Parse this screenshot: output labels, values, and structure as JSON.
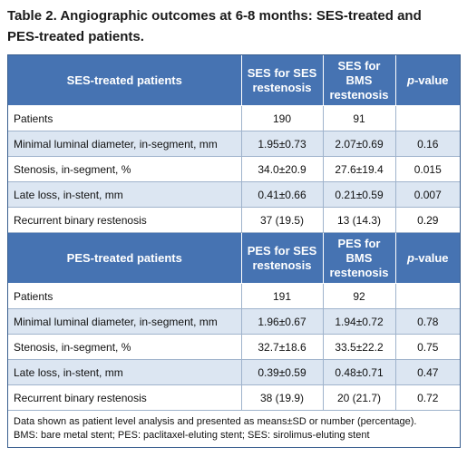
{
  "title_lines": [
    "Table 2. Angiographic outcomes at 6-8 months: SES-treated and",
    "PES-treated patients."
  ],
  "sections": [
    {
      "header": [
        [
          "SES-treated patients"
        ],
        [
          "SES for SES",
          "restenosis"
        ],
        [
          "SES for BMS",
          "restenosis"
        ]
      ],
      "p_header": {
        "italic": "p",
        "text": "-value"
      },
      "rows": [
        [
          "Patients",
          "190",
          "91",
          ""
        ],
        [
          "Minimal luminal diameter, in-segment, mm",
          "1.95±0.73",
          "2.07±0.69",
          "0.16"
        ],
        [
          "Stenosis, in-segment, %",
          "34.0±20.9",
          "27.6±19.4",
          "0.015"
        ],
        [
          "Late loss, in-stent, mm",
          "0.41±0.66",
          "0.21±0.59",
          "0.007"
        ],
        [
          "Recurrent binary restenosis",
          "37 (19.5)",
          "13 (14.3)",
          "0.29"
        ]
      ]
    },
    {
      "header": [
        [
          "PES-treated patients"
        ],
        [
          "PES for SES",
          "restenosis"
        ],
        [
          "PES for BMS",
          "restenosis"
        ]
      ],
      "p_header": {
        "italic": "p",
        "text": "-value"
      },
      "rows": [
        [
          "Patients",
          "191",
          "92",
          ""
        ],
        [
          "Minimal luminal diameter, in-segment, mm",
          "1.96±0.67",
          "1.94±0.72",
          "0.78"
        ],
        [
          "Stenosis, in-segment, %",
          "32.7±18.6",
          "33.5±22.2",
          "0.75"
        ],
        [
          "Late loss, in-stent, mm",
          "0.39±0.59",
          "0.48±0.71",
          "0.47"
        ],
        [
          "Recurrent binary restenosis",
          "38 (19.9)",
          "20 (21.7)",
          "0.72"
        ]
      ]
    }
  ],
  "footnote": [
    "Data shown as patient level analysis and presented as means±SD or number (percentage).",
    "BMS: bare metal stent; PES: paclitaxel-eluting stent; SES: sirolimus-eluting stent"
  ]
}
